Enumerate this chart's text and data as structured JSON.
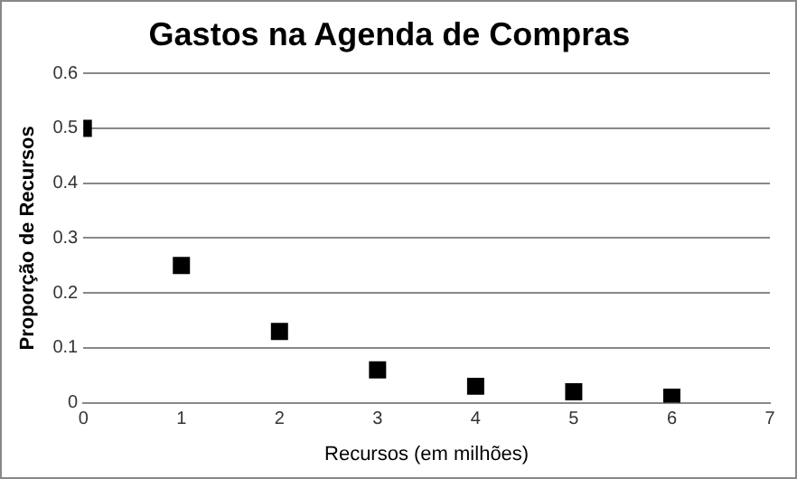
{
  "chart_data": {
    "type": "scatter",
    "title": "Gastos na Agenda de Compras",
    "xlabel": "Recursos (em milhões)",
    "ylabel": "Proporção de Recursos",
    "x": [
      0,
      1,
      2,
      3,
      4,
      5,
      6
    ],
    "series": [
      {
        "color": "#000000",
        "values": [
          0.5,
          0.25,
          0.13,
          0.06,
          0.03,
          0.02,
          0.01
        ]
      }
    ],
    "xlim": [
      0,
      7
    ],
    "xticks": [
      0,
      1,
      2,
      3,
      4,
      5,
      6,
      7
    ],
    "ylim": [
      0,
      0.6
    ],
    "yticks": [
      0,
      0.1,
      0.2,
      0.3,
      0.4,
      0.5,
      0.6
    ],
    "grid": "y",
    "legend": false,
    "marker": "square"
  }
}
